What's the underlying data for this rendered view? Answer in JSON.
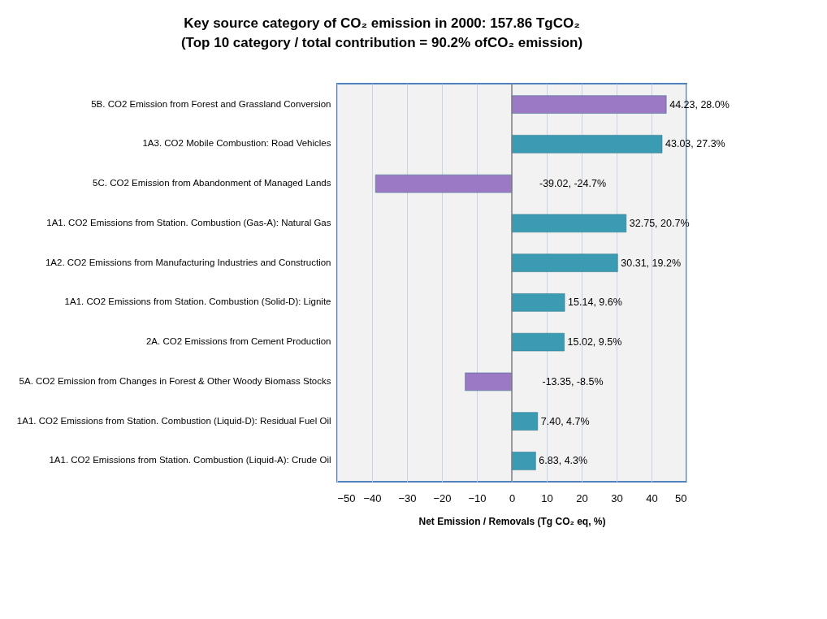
{
  "chart_data": {
    "type": "bar",
    "orientation": "horizontal",
    "title": [
      "Key source category of CO₂ emission in 2000:  157.86 TgCO₂",
      "(Top 10 category  /  total contribution  = 90.2% ofCO₂ emission)"
    ],
    "xlabel": "Net Emission / Removals (Tg CO₂ eq, %)",
    "categories": [
      "5B. CO2 Emission from Forest and Grassland Conversion",
      "1A3. CO2 Mobile Combustion: Road Vehicles",
      "5C. CO2 Emission from Abandonment of Managed Lands",
      "1A1. CO2 Emissions from Station. Combustion (Gas-A): Natural Gas",
      "1A2. CO2 Emissions from Manufacturing Industries and Construction",
      "1A1. CO2 Emissions from Station. Combustion (Solid-D): Lignite",
      "2A. CO2 Emissions from Cement Production",
      "5A. CO2 Emission from Changes in Forest & Other Woody Biomass Stocks",
      "1A1. CO2 Emissions from Station. Combustion (Liquid-D): Residual Fuel Oil",
      "1A1. CO2 Emissions from Station. Combustion (Liquid-A): Crude Oil"
    ],
    "values": [
      44.23,
      43.03,
      -39.02,
      32.75,
      30.31,
      15.14,
      15.02,
      -13.35,
      7.4,
      6.83
    ],
    "value_labels": [
      "44.23, 28.0%",
      "43.03, 27.3%",
      "-39.02, -24.7%",
      "32.75, 20.7%",
      "30.31, 19.2%",
      "15.14, 9.6%",
      "15.02, 9.5%",
      "-13.35, -8.5%",
      "7.40, 4.7%",
      "6.83, 4.3%"
    ],
    "colors": [
      "#9b79c4",
      "#3b9bb3",
      "#9b79c4",
      "#3b9bb3",
      "#3b9bb3",
      "#3b9bb3",
      "#3b9bb3",
      "#9b79c4",
      "#3b9bb3",
      "#3b9bb3"
    ],
    "xlim": [
      -50,
      50
    ],
    "xticks": [
      -50,
      -40,
      -30,
      -20,
      -10,
      0,
      10,
      20,
      30,
      40,
      50
    ],
    "grid": "x"
  }
}
